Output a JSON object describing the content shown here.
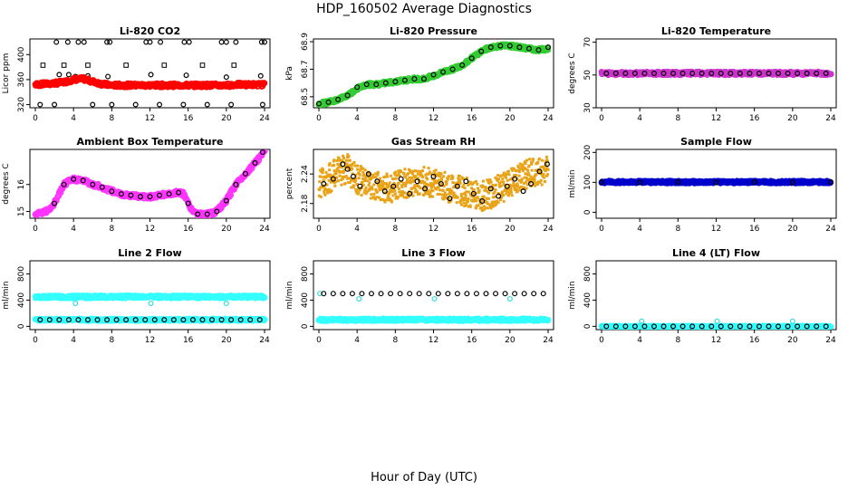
{
  "figure": {
    "title": "HDP_160502  Average Diagnostics",
    "xlabel": "Hour of Day (UTC)"
  },
  "chart_data": [
    {
      "type": "scatter",
      "title": "Li-820 CO2",
      "ylabel": "Licor ppm",
      "xlim": [
        0,
        24
      ],
      "ylim": [
        315,
        425
      ],
      "xticks": [
        0,
        4,
        8,
        12,
        16,
        20,
        24
      ],
      "yticks": [
        320,
        360,
        400
      ],
      "series": [
        {
          "kind": "points",
          "color": "#000000",
          "shape": "open-square",
          "x": [
            0.8,
            3.0,
            5.5,
            9.5,
            13.5,
            17.5,
            20.8
          ],
          "y": [
            383,
            383,
            383,
            383,
            383,
            383,
            383
          ]
        },
        {
          "kind": "points",
          "color": "#000000",
          "shape": "open-circle",
          "x": [
            2.2,
            3.4,
            4.5,
            5.1,
            7.5,
            7.8,
            11.6,
            12.0,
            13.1,
            15.6,
            16.1,
            19.5,
            20.0,
            21.0,
            23.7,
            24.0
          ],
          "y": [
            420,
            420,
            420,
            420,
            420,
            420,
            420,
            420,
            420,
            420,
            420,
            420,
            420,
            420,
            420,
            420
          ]
        },
        {
          "kind": "points",
          "color": "#000000",
          "shape": "open-circle",
          "x": [
            0.5,
            2.0,
            6.0,
            8.0,
            10.5,
            13.0,
            15.5,
            18.0,
            20.5,
            23.8
          ],
          "y": [
            320,
            320,
            320,
            320,
            320,
            320,
            320,
            320,
            320,
            320
          ]
        },
        {
          "kind": "points",
          "color": "#000000",
          "shape": "open-circle",
          "x": [
            2.5,
            3.5,
            4.2,
            5.5,
            7.6,
            12.1,
            15.8,
            20.0,
            23.6
          ],
          "y": [
            368,
            368,
            365,
            366,
            365,
            368,
            367,
            364,
            366
          ]
        },
        {
          "kind": "band",
          "color": "#ff0000",
          "x": [
            0,
            1,
            2,
            3,
            4,
            5,
            6,
            7,
            8,
            9,
            10,
            11,
            12,
            13,
            14,
            15,
            16,
            17,
            18,
            19,
            20,
            21,
            22,
            23,
            24
          ],
          "y": [
            352,
            353,
            354,
            356,
            360,
            361,
            357,
            353,
            351,
            351,
            351,
            351,
            351,
            351,
            351,
            351,
            351,
            351,
            351,
            351,
            351,
            352,
            352,
            352,
            352
          ],
          "halfwidth": 3
        }
      ]
    },
    {
      "type": "scatter",
      "title": "Li-820 Pressure",
      "ylabel": "kPa",
      "xlim": [
        0,
        24
      ],
      "ylim": [
        68.42,
        68.92
      ],
      "xticks": [
        0,
        4,
        8,
        12,
        16,
        20,
        24
      ],
      "yticks": [
        68.5,
        68.7,
        68.9
      ],
      "series": [
        {
          "kind": "band",
          "color": "#33cc33",
          "x": [
            0,
            1,
            2,
            3,
            4,
            5,
            6,
            7,
            8,
            9,
            10,
            11,
            12,
            13,
            14,
            15,
            16,
            17,
            18,
            19,
            20,
            21,
            22,
            23,
            24
          ],
          "y": [
            68.45,
            68.46,
            68.48,
            68.51,
            68.56,
            68.59,
            68.59,
            68.6,
            68.61,
            68.62,
            68.63,
            68.63,
            68.65,
            68.68,
            68.7,
            68.73,
            68.78,
            68.83,
            68.86,
            68.87,
            68.87,
            68.86,
            68.85,
            68.84,
            68.85
          ],
          "halfwidth": 0.012
        },
        {
          "kind": "points",
          "color": "#000000",
          "shape": "open-circle",
          "x": [
            0,
            1,
            2,
            3,
            4,
            5,
            6,
            7,
            8,
            9,
            10,
            11,
            12,
            13,
            14,
            15,
            16,
            17,
            18,
            19,
            20,
            21,
            22,
            23,
            24
          ],
          "y": [
            68.45,
            68.46,
            68.48,
            68.51,
            68.57,
            68.59,
            68.59,
            68.6,
            68.61,
            68.62,
            68.63,
            68.63,
            68.66,
            68.68,
            68.7,
            68.73,
            68.78,
            68.83,
            68.86,
            68.87,
            68.87,
            68.86,
            68.85,
            68.84,
            68.86
          ]
        }
      ]
    },
    {
      "type": "scatter",
      "title": "Li-820 Temperature",
      "ylabel": "degrees C",
      "xlim": [
        0,
        24
      ],
      "ylim": [
        30,
        72
      ],
      "xticks": [
        0,
        4,
        8,
        12,
        16,
        20,
        24
      ],
      "yticks": [
        30,
        50,
        70
      ],
      "series": [
        {
          "kind": "band",
          "color": "#cc33cc",
          "x": [
            0,
            24
          ],
          "y": [
            51,
            51
          ],
          "halfwidth": 1
        },
        {
          "kind": "points",
          "color": "#000000",
          "shape": "open-circle",
          "x": [
            0.5,
            1.5,
            2.5,
            3.5,
            4.5,
            5.5,
            6.5,
            7.5,
            8.5,
            9.5,
            10.5,
            11.5,
            12.5,
            13.5,
            14.5,
            15.5,
            16.5,
            17.5,
            18.5,
            19.5,
            20.5,
            21.5,
            22.5,
            23.5
          ],
          "y": [
            51,
            51,
            51,
            51,
            51,
            51,
            51,
            51,
            51,
            51,
            51,
            51,
            51,
            51,
            51,
            51,
            51,
            51,
            51,
            51,
            51,
            51,
            51,
            51
          ]
        }
      ]
    },
    {
      "type": "scatter",
      "title": "Ambient Box Temperature",
      "ylabel": "degrees C",
      "xlim": [
        0,
        24
      ],
      "ylim": [
        14.75,
        17.3
      ],
      "xticks": [
        0,
        4,
        8,
        12,
        16,
        20,
        24
      ],
      "yticks": [
        15.0,
        16.0
      ],
      "series": [
        {
          "kind": "band",
          "color": "#ff33ff",
          "x": [
            0,
            1,
            1.5,
            2,
            3,
            4,
            5,
            6,
            7,
            8,
            9,
            10,
            11,
            12,
            13,
            14,
            15,
            15.5,
            16,
            16.5,
            17,
            17.5,
            18,
            19,
            20,
            21,
            22,
            23,
            23.5,
            24
          ],
          "y": [
            14.9,
            15.0,
            15.05,
            15.3,
            16.0,
            16.2,
            16.15,
            16.0,
            15.9,
            15.75,
            15.65,
            15.6,
            15.55,
            15.55,
            15.6,
            15.65,
            15.7,
            15.65,
            15.3,
            15.0,
            14.9,
            14.88,
            14.9,
            15.0,
            15.4,
            16.0,
            16.4,
            16.8,
            17.0,
            17.3
          ],
          "halfwidth": 0.08
        },
        {
          "kind": "points",
          "color": "#000000",
          "shape": "open-circle",
          "x": [
            2,
            3,
            4,
            5,
            6,
            7,
            8,
            9,
            10,
            11,
            12,
            13,
            14,
            15,
            16,
            17,
            18,
            19,
            20,
            21,
            22,
            23,
            23.8
          ],
          "y": [
            15.3,
            16.0,
            16.2,
            16.15,
            16.0,
            15.9,
            15.75,
            15.65,
            15.6,
            15.55,
            15.55,
            15.6,
            15.65,
            15.7,
            15.3,
            14.9,
            14.9,
            15.0,
            15.4,
            16.0,
            16.4,
            16.8,
            17.2
          ]
        }
      ]
    },
    {
      "type": "scatter",
      "title": "Gas Stream RH",
      "ylabel": "percent",
      "xlim": [
        0,
        24
      ],
      "ylim": [
        2.15,
        2.29
      ],
      "xticks": [
        0,
        4,
        8,
        12,
        16,
        20,
        24
      ],
      "yticks": [
        2.18,
        2.24
      ],
      "series": [
        {
          "kind": "noise",
          "color": "#e8a317",
          "x": [
            0,
            1,
            2,
            3,
            4,
            5,
            6,
            7,
            8,
            9,
            10,
            11,
            12,
            13,
            14,
            15,
            16,
            17,
            18,
            19,
            20,
            21,
            22,
            23,
            24
          ],
          "y": [
            2.22,
            2.23,
            2.245,
            2.25,
            2.23,
            2.22,
            2.215,
            2.21,
            2.215,
            2.22,
            2.225,
            2.225,
            2.22,
            2.215,
            2.21,
            2.205,
            2.2,
            2.195,
            2.2,
            2.21,
            2.22,
            2.235,
            2.24,
            2.245,
            2.25
          ],
          "halfwidth": 0.03
        },
        {
          "kind": "points",
          "color": "#000000",
          "shape": "open-circle",
          "x": [
            0.5,
            1.5,
            2.5,
            3.0,
            3.6,
            4.3,
            5.2,
            6.1,
            6.9,
            7.8,
            8.6,
            9.5,
            10.3,
            11.1,
            12.0,
            12.8,
            13.7,
            14.5,
            15.4,
            16.2,
            17.1,
            18.0,
            18.8,
            19.7,
            20.5,
            21.4,
            22.2,
            23.1,
            23.9
          ],
          "y": [
            2.22,
            2.23,
            2.26,
            2.25,
            2.235,
            2.215,
            2.24,
            2.225,
            2.205,
            2.215,
            2.23,
            2.2,
            2.225,
            2.21,
            2.235,
            2.22,
            2.19,
            2.215,
            2.225,
            2.2,
            2.185,
            2.21,
            2.195,
            2.215,
            2.23,
            2.205,
            2.22,
            2.245,
            2.26
          ]
        }
      ]
    },
    {
      "type": "scatter",
      "title": "Sample Flow",
      "ylabel": "ml/min",
      "xlim": [
        0,
        24
      ],
      "ylim": [
        -20,
        210
      ],
      "xticks": [
        0,
        4,
        8,
        12,
        16,
        20,
        24
      ],
      "yticks": [
        0,
        100,
        200
      ],
      "series": [
        {
          "kind": "band",
          "color": "#0000cc",
          "x": [
            0,
            24
          ],
          "y": [
            101,
            101
          ],
          "halfwidth": 4
        },
        {
          "kind": "points",
          "color": "#000000",
          "shape": "open-circle",
          "x": [
            0,
            4,
            8,
            12,
            16,
            20,
            24
          ],
          "y": [
            101,
            99,
            101,
            99,
            101,
            100,
            101
          ]
        }
      ]
    },
    {
      "type": "scatter",
      "title": "Line 2 Flow",
      "ylabel": "ml/min",
      "xlim": [
        0,
        24
      ],
      "ylim": [
        -50,
        1000
      ],
      "xticks": [
        0,
        4,
        8,
        12,
        16,
        20,
        24
      ],
      "yticks": [
        0,
        400,
        800
      ],
      "series": [
        {
          "kind": "band",
          "color": "#33ffff",
          "x": [
            0,
            24
          ],
          "y": [
            450,
            450
          ],
          "halfwidth": 20
        },
        {
          "kind": "band",
          "color": "#33ffff",
          "x": [
            0,
            24
          ],
          "y": [
            100,
            100
          ],
          "halfwidth": 15
        },
        {
          "kind": "points",
          "color": "#33dddd",
          "shape": "open-circle",
          "x": [
            4.2,
            12.1,
            20.0
          ],
          "y": [
            350,
            350,
            350
          ]
        },
        {
          "kind": "points",
          "color": "#000000",
          "shape": "open-circle",
          "x": [
            0.5,
            1.5,
            2.5,
            3.5,
            4.5,
            5.5,
            6.5,
            7.5,
            8.5,
            9.5,
            10.5,
            11.5,
            12.5,
            13.5,
            14.5,
            15.5,
            16.5,
            17.5,
            18.5,
            19.5,
            20.5,
            21.5,
            22.5,
            23.5
          ],
          "y": [
            100,
            100,
            100,
            100,
            100,
            100,
            100,
            100,
            100,
            100,
            100,
            100,
            100,
            100,
            100,
            100,
            100,
            100,
            100,
            100,
            100,
            100,
            100,
            100
          ]
        }
      ]
    },
    {
      "type": "scatter",
      "title": "Line 3 Flow",
      "ylabel": "ml/min",
      "xlim": [
        0,
        24
      ],
      "ylim": [
        -50,
        1000
      ],
      "xticks": [
        0,
        4,
        8,
        12,
        16,
        20,
        24
      ],
      "yticks": [
        0,
        400,
        800
      ],
      "series": [
        {
          "kind": "band",
          "color": "#33ffff",
          "x": [
            0,
            24
          ],
          "y": [
            100,
            100
          ],
          "halfwidth": 18
        },
        {
          "kind": "points",
          "color": "#33dddd",
          "shape": "open-circle",
          "x": [
            0.1,
            4.2,
            12.1,
            20.0
          ],
          "y": [
            500,
            420,
            420,
            420
          ]
        },
        {
          "kind": "points",
          "color": "#000000",
          "shape": "open-circle",
          "x": [
            0.5,
            1.5,
            2.5,
            3.5,
            4.5,
            5.5,
            6.5,
            7.5,
            8.5,
            9.5,
            10.5,
            11.5,
            12.5,
            13.5,
            14.5,
            15.5,
            16.5,
            17.5,
            18.5,
            19.5,
            20.5,
            21.5,
            22.5,
            23.5
          ],
          "y": [
            500,
            500,
            500,
            500,
            500,
            500,
            500,
            500,
            500,
            500,
            500,
            500,
            500,
            500,
            500,
            500,
            500,
            500,
            500,
            500,
            500,
            500,
            500,
            500
          ]
        }
      ]
    },
    {
      "type": "scatter",
      "title": "Line 4 (LT) Flow",
      "ylabel": "ml/min",
      "xlim": [
        0,
        24
      ],
      "ylim": [
        -50,
        1000
      ],
      "xticks": [
        0,
        4,
        8,
        12,
        16,
        20,
        24
      ],
      "yticks": [
        0,
        400,
        800
      ],
      "series": [
        {
          "kind": "band",
          "color": "#33ffff",
          "x": [
            0,
            24
          ],
          "y": [
            0,
            0
          ],
          "halfwidth": 6
        },
        {
          "kind": "points",
          "color": "#33dddd",
          "shape": "open-circle",
          "x": [
            0.1,
            4.2,
            12.1,
            20.0
          ],
          "y": [
            0,
            80,
            80,
            80
          ]
        },
        {
          "kind": "points",
          "color": "#000000",
          "shape": "open-circle",
          "x": [
            0.5,
            1.5,
            2.5,
            3.5,
            4.5,
            5.5,
            6.5,
            7.5,
            8.5,
            9.5,
            10.5,
            11.5,
            12.5,
            13.5,
            14.5,
            15.5,
            16.5,
            17.5,
            18.5,
            19.5,
            20.5,
            21.5,
            22.5,
            23.5
          ],
          "y": [
            0,
            0,
            0,
            0,
            0,
            0,
            0,
            0,
            0,
            0,
            0,
            0,
            0,
            0,
            0,
            0,
            0,
            0,
            0,
            0,
            0,
            0,
            0,
            0
          ]
        }
      ]
    }
  ]
}
